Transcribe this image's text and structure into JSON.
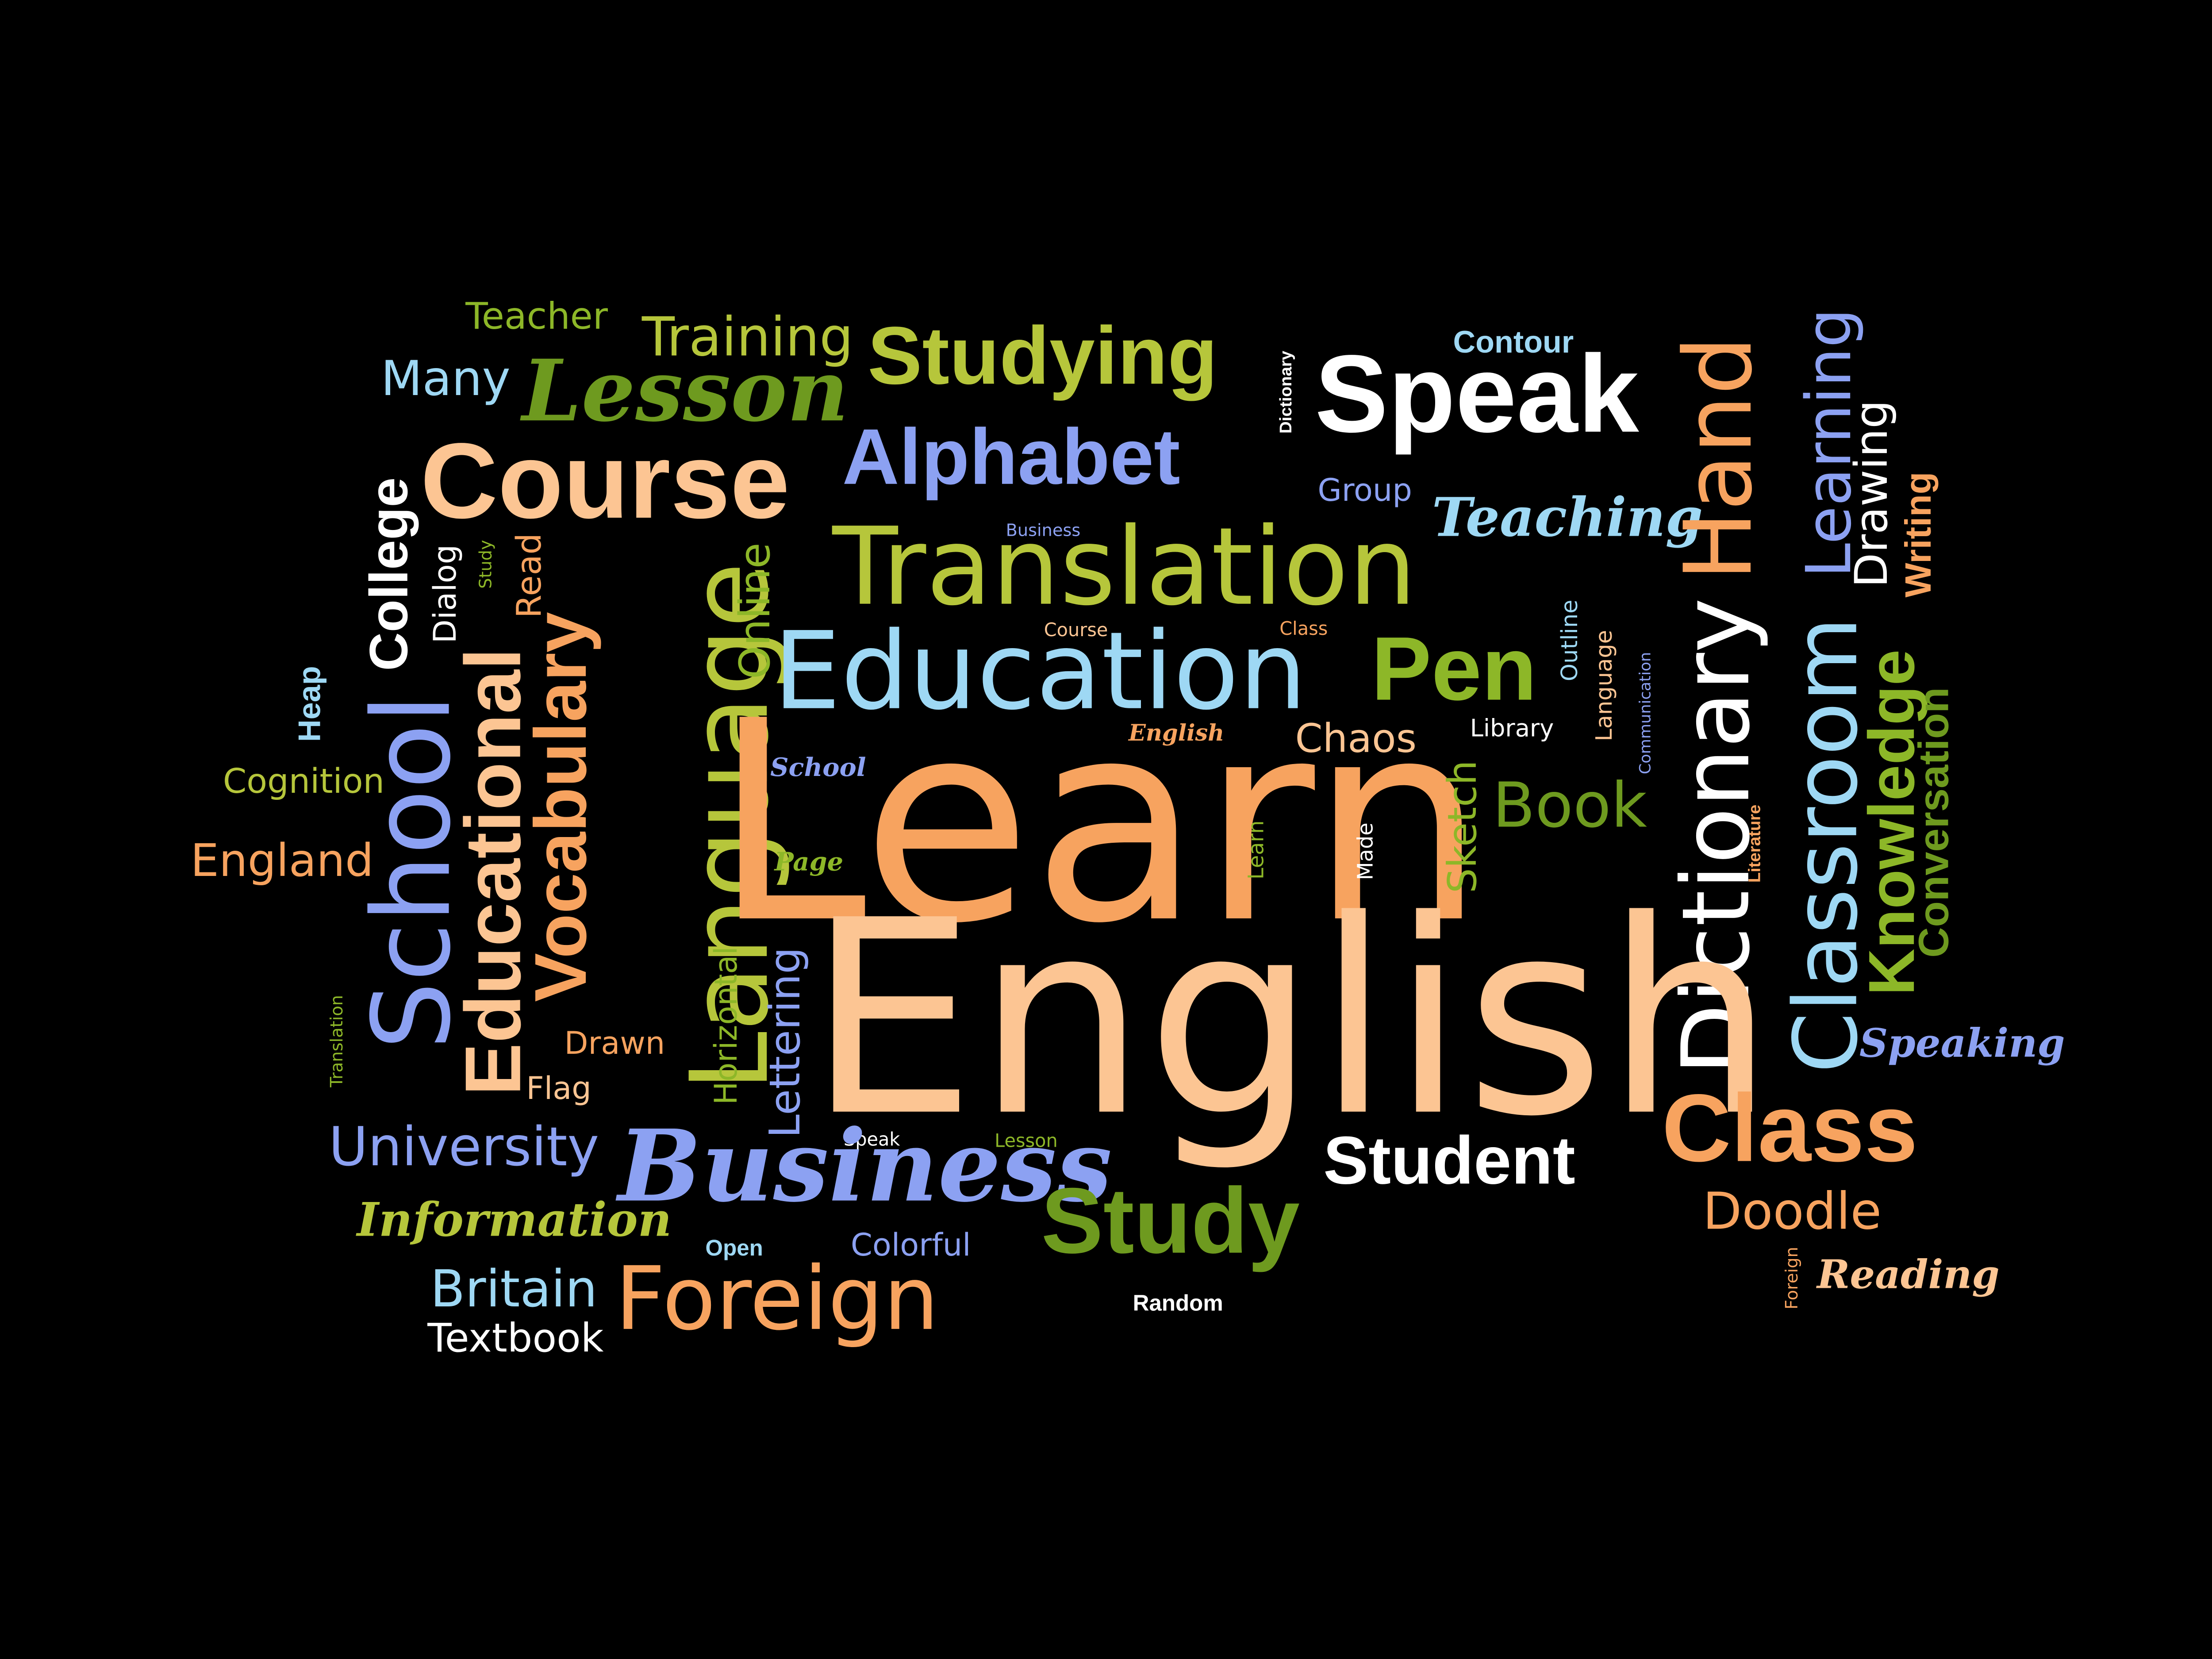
{
  "colors": {
    "background": "#000000",
    "orange": "#F7A35F",
    "peach": "#FCC593",
    "green": "#8DB728",
    "dark_green": "#6E9A1F",
    "blue": "#8CA1F2",
    "light_blue": "#9ED8F4",
    "white": "#FFFFFF",
    "yellow_green": "#B6C63B"
  },
  "words": [
    {
      "id": "teacher",
      "text": "Teacher"
    },
    {
      "id": "training",
      "text": "Training"
    },
    {
      "id": "studying",
      "text": "Studying"
    },
    {
      "id": "dictionary-small",
      "text": "Dictionary"
    },
    {
      "id": "contour",
      "text": "Contour"
    },
    {
      "id": "speak-large",
      "text": "Speak"
    },
    {
      "id": "many",
      "text": "Many"
    },
    {
      "id": "lesson-large",
      "text": "Lesson"
    },
    {
      "id": "course-large",
      "text": "Course"
    },
    {
      "id": "alphabet",
      "text": "Alphabet"
    },
    {
      "id": "group",
      "text": "Group"
    },
    {
      "id": "teaching",
      "text": "Teaching"
    },
    {
      "id": "hand",
      "text": "Hand"
    },
    {
      "id": "learning",
      "text": "Learning"
    },
    {
      "id": "drawing",
      "text": "Drawing"
    },
    {
      "id": "writing",
      "text": "Writing"
    },
    {
      "id": "college",
      "text": "College"
    },
    {
      "id": "dialog",
      "text": "Dialog"
    },
    {
      "id": "study-small",
      "text": "Study"
    },
    {
      "id": "read",
      "text": "Read"
    },
    {
      "id": "business-small",
      "text": "Business"
    },
    {
      "id": "translation-large",
      "text": "Translation"
    },
    {
      "id": "vocabulary",
      "text": "Vocabulary"
    },
    {
      "id": "language-large",
      "text": "Language"
    },
    {
      "id": "online",
      "text": "Online"
    },
    {
      "id": "course-small",
      "text": "Course"
    },
    {
      "id": "class-small",
      "text": "Class"
    },
    {
      "id": "education",
      "text": "Education"
    },
    {
      "id": "pen",
      "text": "Pen"
    },
    {
      "id": "outline",
      "text": "Outline"
    },
    {
      "id": "language-small",
      "text": "Language"
    },
    {
      "id": "communication",
      "text": "Communication"
    },
    {
      "id": "dictionary-large",
      "text": "Dictionary"
    },
    {
      "id": "classroom",
      "text": "Classroom"
    },
    {
      "id": "knowledge",
      "text": "Knowledge"
    },
    {
      "id": "conversation",
      "text": "Conversation"
    },
    {
      "id": "heap",
      "text": "Heap"
    },
    {
      "id": "school-large",
      "text": "School"
    },
    {
      "id": "educational",
      "text": "Educational"
    },
    {
      "id": "english-small",
      "text": "English"
    },
    {
      "id": "chaos",
      "text": "Chaos"
    },
    {
      "id": "library",
      "text": "Library"
    },
    {
      "id": "cognition",
      "text": "Cognition"
    },
    {
      "id": "school-small",
      "text": "School"
    },
    {
      "id": "learn-main",
      "text": "Learn"
    },
    {
      "id": "sketch",
      "text": "Sketch"
    },
    {
      "id": "book",
      "text": "Book"
    },
    {
      "id": "literature",
      "text": "Literature"
    },
    {
      "id": "england",
      "text": "England"
    },
    {
      "id": "page",
      "text": "Page"
    },
    {
      "id": "learn-small",
      "text": "Learn"
    },
    {
      "id": "made",
      "text": "Made"
    },
    {
      "id": "english-main",
      "text": "English"
    },
    {
      "id": "translation-small",
      "text": "Translation"
    },
    {
      "id": "horizontal",
      "text": "Horizontal"
    },
    {
      "id": "lettering",
      "text": "Lettering"
    },
    {
      "id": "drawn",
      "text": "Drawn"
    },
    {
      "id": "speaking",
      "text": "Speaking"
    },
    {
      "id": "flag",
      "text": "Flag"
    },
    {
      "id": "university",
      "text": "University"
    },
    {
      "id": "speak-small",
      "text": "Speak"
    },
    {
      "id": "lesson-small",
      "text": "Lesson"
    },
    {
      "id": "student",
      "text": "Student"
    },
    {
      "id": "class-large",
      "text": "Class"
    },
    {
      "id": "business-large",
      "text": "Business"
    },
    {
      "id": "study-large",
      "text": "Study"
    },
    {
      "id": "doodle",
      "text": "Doodle"
    },
    {
      "id": "information",
      "text": "Information"
    },
    {
      "id": "open",
      "text": "Open"
    },
    {
      "id": "colorful",
      "text": "Colorful"
    },
    {
      "id": "britain",
      "text": "Britain"
    },
    {
      "id": "foreign-large",
      "text": "Foreign"
    },
    {
      "id": "foreign-small",
      "text": "Foreign"
    },
    {
      "id": "reading",
      "text": "Reading"
    },
    {
      "id": "textbook",
      "text": "Textbook"
    },
    {
      "id": "random",
      "text": "Random"
    }
  ]
}
